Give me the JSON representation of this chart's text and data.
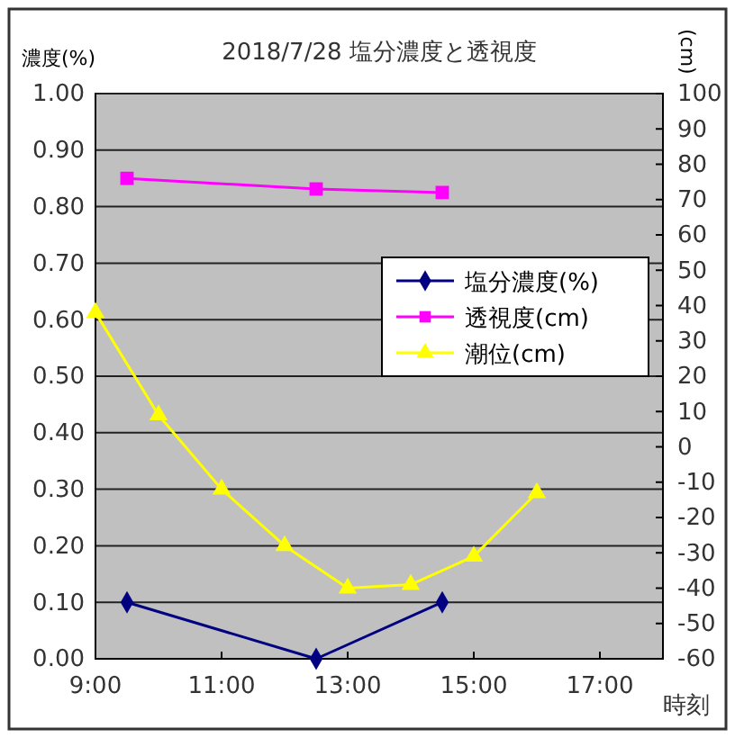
{
  "chart_data": {
    "type": "line",
    "title": "2018/7/28  塩分濃度と透視度",
    "xlabel": "時刻",
    "ylabel": "濃度(%)",
    "y2label": "(cm)",
    "xlim": [
      9,
      18
    ],
    "xticks": [
      {
        "value": 9,
        "label": "9:00"
      },
      {
        "value": 11,
        "label": "11:00"
      },
      {
        "value": 13,
        "label": "13:00"
      },
      {
        "value": 15,
        "label": "15:00"
      },
      {
        "value": 17,
        "label": "17:00"
      }
    ],
    "ylim": [
      0,
      1
    ],
    "yticks": [
      {
        "value": 0,
        "label": "0.00"
      },
      {
        "value": 0.1,
        "label": "0.10"
      },
      {
        "value": 0.2,
        "label": "0.20"
      },
      {
        "value": 0.3,
        "label": "0.30"
      },
      {
        "value": 0.4,
        "label": "0.40"
      },
      {
        "value": 0.5,
        "label": "0.50"
      },
      {
        "value": 0.6,
        "label": "0.60"
      },
      {
        "value": 0.7,
        "label": "0.70"
      },
      {
        "value": 0.8,
        "label": "0.80"
      },
      {
        "value": 0.9,
        "label": "0.90"
      },
      {
        "value": 1,
        "label": "1.00"
      }
    ],
    "y2lim": [
      -60,
      100
    ],
    "y2ticks": [
      -60,
      -50,
      -40,
      -30,
      -20,
      -10,
      0,
      10,
      20,
      30,
      40,
      50,
      60,
      70,
      80,
      90,
      100
    ],
    "grid": "y",
    "legend": "right",
    "series": [
      {
        "name": "塩分濃度(%)",
        "color": "#000080",
        "marker": "diamond",
        "x": [
          9.5,
          12.5,
          14.5
        ],
        "values": [
          0.1,
          0,
          0.1
        ]
      },
      {
        "name": "透視度(cm)",
        "color": "#ff00ff",
        "marker": "square",
        "axis": "y2",
        "x": [
          9.5,
          12.5,
          14.5
        ],
        "values": [
          76,
          73,
          72
        ]
      },
      {
        "name": "潮位(cm)",
        "color": "#ffff00",
        "marker": "triangle",
        "axis": "y2",
        "x": [
          9,
          10,
          11,
          12,
          13,
          14,
          15,
          16
        ],
        "values": [
          38,
          9,
          -12,
          -28,
          -40,
          -39,
          -31,
          -13
        ]
      }
    ]
  }
}
